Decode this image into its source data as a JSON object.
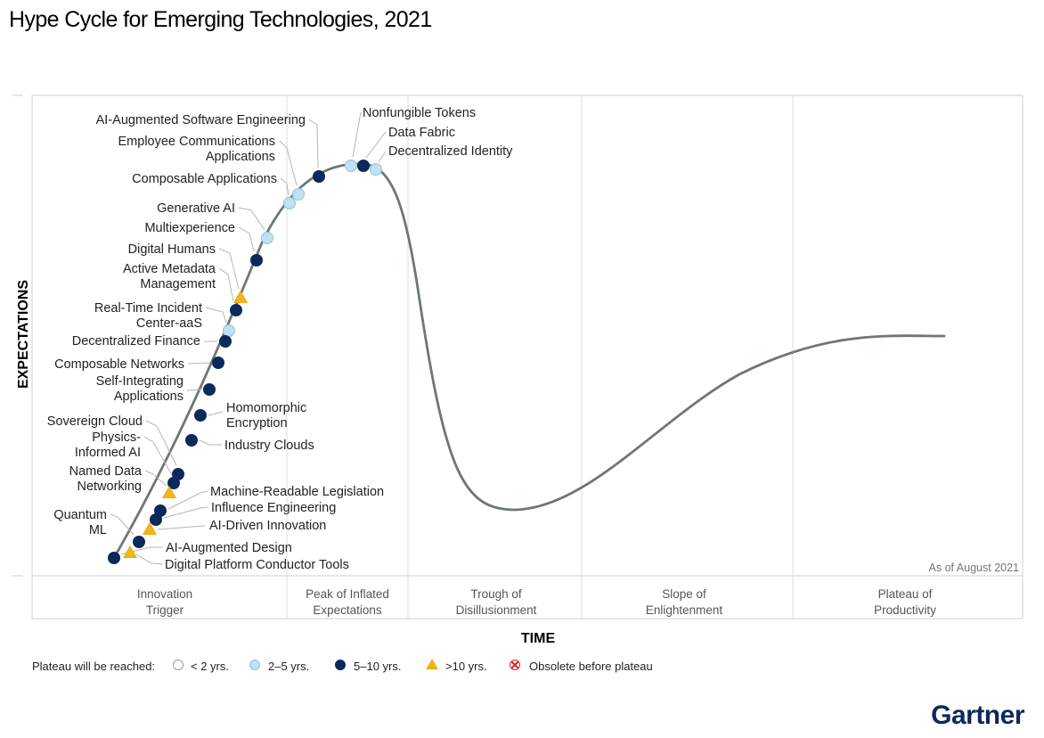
{
  "title": "Hype Cycle for Emerging Technologies, 2021",
  "axis": {
    "y_label": "EXPECTATIONS",
    "x_label": "TIME"
  },
  "as_of": "As of August 2021",
  "phases": [
    [
      "Innovation",
      "Trigger"
    ],
    [
      "Peak of Inflated",
      "Expectations"
    ],
    [
      "Trough of",
      "Disillusionment"
    ],
    [
      "Slope of",
      "Enlightenment"
    ],
    [
      "Plateau of",
      "Productivity"
    ]
  ],
  "legend": {
    "prefix": "Plateau will be reached:",
    "items": [
      {
        "kind": "lt2",
        "label": "< 2 yrs."
      },
      {
        "kind": "2to5",
        "label": "2–5 yrs."
      },
      {
        "kind": "5to10",
        "label": "5–10 yrs."
      },
      {
        "kind": "gt10",
        "label": ">10 yrs."
      },
      {
        "kind": "obsolete",
        "label": "Obsolete before plateau"
      }
    ]
  },
  "colors": {
    "lt2": "#ffffff",
    "2to5": "#bfe1f2",
    "5to10": "#0b2a5b",
    "gt10": "#f4b51b",
    "curve": "#6e7774",
    "brand": "#0b2a5b"
  },
  "technologies": [
    {
      "name": [
        "Nonfungible Tokens"
      ],
      "kind": "2to5"
    },
    {
      "name": [
        "Data Fabric"
      ],
      "kind": "5to10"
    },
    {
      "name": [
        "Decentralized Identity"
      ],
      "kind": "2to5"
    },
    {
      "name": [
        "AI-Augmented Software Engineering"
      ],
      "kind": "5to10"
    },
    {
      "name": [
        "Employee Communications",
        "Applications"
      ],
      "kind": "2to5"
    },
    {
      "name": [
        "Composable Applications"
      ],
      "kind": "2to5"
    },
    {
      "name": [
        "Generative AI"
      ],
      "kind": "2to5"
    },
    {
      "name": [
        "Multiexperience"
      ],
      "kind": "5to10"
    },
    {
      "name": [
        "Digital Humans"
      ],
      "kind": "gt10"
    },
    {
      "name": [
        "Active Metadata",
        "Management"
      ],
      "kind": "5to10"
    },
    {
      "name": [
        "Real-Time Incident",
        "Center-aaS"
      ],
      "kind": "2to5"
    },
    {
      "name": [
        "Decentralized Finance"
      ],
      "kind": "5to10"
    },
    {
      "name": [
        "Composable Networks"
      ],
      "kind": "5to10"
    },
    {
      "name": [
        "Self-Integrating",
        "Applications"
      ],
      "kind": "5to10"
    },
    {
      "name": [
        "Homomorphic",
        "Encryption"
      ],
      "kind": "5to10"
    },
    {
      "name": [
        "Industry Clouds"
      ],
      "kind": "5to10"
    },
    {
      "name": [
        "Sovereign Cloud"
      ],
      "kind": "5to10"
    },
    {
      "name": [
        "Physics-",
        "Informed AI"
      ],
      "kind": "5to10"
    },
    {
      "name": [
        "Named Data",
        "Networking"
      ],
      "kind": "gt10"
    },
    {
      "name": [
        "Machine-Readable Legislation"
      ],
      "kind": "5to10"
    },
    {
      "name": [
        "Influence Engineering"
      ],
      "kind": "5to10"
    },
    {
      "name": [
        "AI-Driven Innovation"
      ],
      "kind": "gt10"
    },
    {
      "name": [
        "Quantum",
        "ML"
      ],
      "kind": "5to10"
    },
    {
      "name": [
        "AI-Augmented Design"
      ],
      "kind": "5to10"
    },
    {
      "name": [
        "Digital Platform Conductor Tools"
      ],
      "kind": "gt10"
    }
  ],
  "brand": "Gartner"
}
